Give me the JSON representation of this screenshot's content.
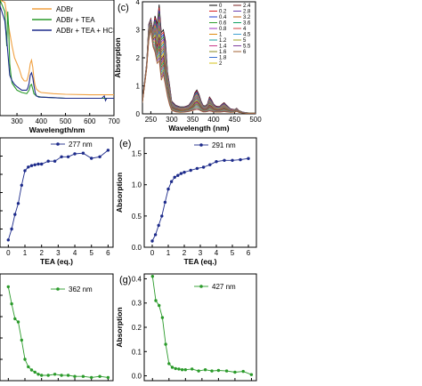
{
  "chart_data": [
    {
      "id": "b",
      "type": "line",
      "xlabel": "Wavelength/nm",
      "ylabel": "",
      "xlim": [
        230,
        700
      ],
      "ylim": [
        0,
        1.0
      ],
      "xticks": [
        300,
        400,
        500,
        600,
        700
      ],
      "xtick_labels": [
        "300",
        "400",
        "500",
        "600",
        "700"
      ],
      "legend": "top-right",
      "series": [
        {
          "name": "ADBr",
          "color": "#f0a040",
          "x": [
            230,
            250,
            260,
            270,
            280,
            290,
            300,
            310,
            320,
            330,
            340,
            345,
            350,
            355,
            360,
            365,
            370,
            375,
            380,
            390,
            400,
            450,
            500,
            600,
            700
          ],
          "y": [
            1.0,
            0.98,
            0.85,
            0.72,
            0.6,
            0.5,
            0.45,
            0.4,
            0.33,
            0.3,
            0.3,
            0.33,
            0.38,
            0.45,
            0.48,
            0.42,
            0.32,
            0.26,
            0.23,
            0.21,
            0.2,
            0.19,
            0.185,
            0.18,
            0.18
          ]
        },
        {
          "name": "ADBr + TEA",
          "color": "#2a9a2a",
          "x": [
            230,
            250,
            258,
            262,
            266,
            270,
            275,
            280,
            290,
            300,
            320,
            340,
            350,
            355,
            360,
            365,
            370,
            380,
            400,
            450,
            500,
            600,
            700
          ],
          "y": [
            1.0,
            0.9,
            0.6,
            0.9,
            0.75,
            0.45,
            0.35,
            0.28,
            0.25,
            0.22,
            0.2,
            0.19,
            0.22,
            0.26,
            0.27,
            0.23,
            0.19,
            0.17,
            0.16,
            0.155,
            0.15,
            0.15,
            0.15
          ]
        },
        {
          "name": "ADBr + TEA + HCl",
          "color": "#1c2a8a",
          "x": [
            230,
            250,
            260,
            270,
            280,
            290,
            300,
            320,
            340,
            345,
            350,
            355,
            360,
            365,
            370,
            375,
            380,
            390,
            400,
            450,
            500,
            600,
            650,
            660,
            665,
            670,
            700
          ],
          "y": [
            0.95,
            0.82,
            0.6,
            0.35,
            0.3,
            0.27,
            0.25,
            0.22,
            0.22,
            0.24,
            0.28,
            0.35,
            0.37,
            0.33,
            0.26,
            0.2,
            0.17,
            0.16,
            0.16,
            0.155,
            0.15,
            0.15,
            0.15,
            0.17,
            0.13,
            0.15,
            0.15
          ]
        }
      ]
    },
    {
      "id": "c",
      "type": "line",
      "panel_label": "(c)",
      "xlabel": "Wavelength (nm)",
      "ylabel": "Absorption",
      "xlim": [
        230,
        500
      ],
      "ylim": [
        0,
        4.0
      ],
      "xticks": [
        250,
        300,
        350,
        400,
        450,
        500
      ],
      "xtick_labels": [
        "250",
        "300",
        "350",
        "400",
        "450",
        "500"
      ],
      "yticks": [
        0,
        1,
        2,
        3,
        4
      ],
      "ytick_labels": [
        "0",
        "1",
        "2",
        "3",
        "4"
      ],
      "legend": "top-right",
      "legend_labels": [
        "0",
        "0.2",
        "0.4",
        "0.6",
        "0.8",
        "1",
        "1.2",
        "1.4",
        "1.6",
        "1.8",
        "2",
        "2.4",
        "2.8",
        "3.2",
        "3.6",
        "4",
        "4.5",
        "5",
        "5.5",
        "6"
      ],
      "legend_colors": [
        "#000000",
        "#d62020",
        "#1f3fd0",
        "#2e9e2e",
        "#9b30c0",
        "#e08a10",
        "#1aa0a0",
        "#c83a8a",
        "#8a8a1e",
        "#3a6fd0",
        "#d4c21a",
        "#7a1f1f",
        "#6a3fb0",
        "#c06010",
        "#10a060",
        "#d03f3f",
        "#3fa0d0",
        "#a0a020",
        "#803fa0",
        "#a06030"
      ],
      "spectra": {
        "x": [
          230,
          240,
          245,
          250,
          255,
          260,
          265,
          270,
          275,
          280,
          285,
          290,
          295,
          300,
          310,
          320,
          330,
          340,
          350,
          355,
          360,
          365,
          370,
          375,
          380,
          385,
          390,
          395,
          400,
          405,
          410,
          415,
          420,
          425,
          430,
          440,
          450,
          455,
          460,
          470,
          480,
          490,
          500
        ],
        "y_first": [
          0.5,
          1.8,
          3.2,
          3.4,
          3.0,
          3.5,
          3.2,
          3.9,
          2.9,
          3.0,
          2.6,
          1.5,
          1.0,
          0.45,
          0.3,
          0.25,
          0.25,
          0.3,
          0.5,
          0.75,
          0.85,
          0.7,
          0.45,
          0.3,
          0.28,
          0.35,
          0.6,
          0.5,
          0.35,
          0.28,
          0.26,
          0.27,
          0.35,
          0.4,
          0.32,
          0.18,
          0.15,
          0.2,
          0.12,
          0.06,
          0.04,
          0.03,
          0.02
        ],
        "y_last": [
          0.4,
          1.6,
          2.6,
          3.0,
          2.4,
          2.2,
          1.8,
          1.9,
          1.2,
          1.4,
          1.0,
          0.6,
          0.3,
          0.12,
          0.07,
          0.05,
          0.06,
          0.08,
          0.12,
          0.14,
          0.16,
          0.14,
          0.1,
          0.07,
          0.07,
          0.08,
          0.1,
          0.09,
          0.07,
          0.06,
          0.06,
          0.06,
          0.07,
          0.08,
          0.07,
          0.05,
          0.06,
          0.09,
          0.05,
          0.03,
          0.02,
          0.02,
          0.02
        ]
      }
    },
    {
      "id": "d",
      "type": "line",
      "xlabel": "TEA (eq.)",
      "ylabel": "",
      "xlim": [
        -0.5,
        6.3
      ],
      "ylim": [
        0.0,
        1.5
      ],
      "xticks": [
        0,
        1,
        2,
        3,
        4,
        5,
        6
      ],
      "xtick_labels": [
        "0",
        "1",
        "2",
        "3",
        "4",
        "5",
        "6"
      ],
      "legend": "top-right",
      "series": [
        {
          "name": "277 nm",
          "color": "#1c2a8a",
          "x": [
            0,
            0.2,
            0.4,
            0.6,
            0.8,
            1,
            1.2,
            1.4,
            1.6,
            1.8,
            2,
            2.4,
            2.8,
            3.2,
            3.6,
            4,
            4.5,
            5,
            5.5,
            6
          ],
          "y": [
            0.1,
            0.25,
            0.45,
            0.6,
            0.85,
            1.05,
            1.1,
            1.12,
            1.13,
            1.14,
            1.14,
            1.18,
            1.18,
            1.24,
            1.24,
            1.28,
            1.29,
            1.22,
            1.24,
            1.33
          ]
        }
      ]
    },
    {
      "id": "e",
      "type": "line",
      "panel_label": "(e)",
      "xlabel": "TEA (eq.)",
      "ylabel": "Absorption",
      "xlim": [
        -0.5,
        6.5
      ],
      "ylim": [
        0.0,
        1.75
      ],
      "xticks": [
        0,
        1,
        2,
        3,
        4,
        5,
        6
      ],
      "xtick_labels": [
        "0",
        "1",
        "2",
        "3",
        "4",
        "5",
        "6"
      ],
      "yticks": [
        0.0,
        0.5,
        1.0,
        1.5
      ],
      "ytick_labels": [
        "0.0",
        "0.5",
        "1.0",
        "1.5"
      ],
      "legend": "top-right",
      "series": [
        {
          "name": "291 nm",
          "color": "#1c2a8a",
          "x": [
            0,
            0.2,
            0.4,
            0.6,
            0.8,
            1,
            1.2,
            1.4,
            1.6,
            1.8,
            2,
            2.4,
            2.8,
            3.2,
            3.6,
            4,
            4.5,
            5,
            5.5,
            6
          ],
          "y": [
            0.1,
            0.2,
            0.35,
            0.5,
            0.72,
            0.93,
            1.05,
            1.12,
            1.15,
            1.18,
            1.2,
            1.23,
            1.26,
            1.28,
            1.32,
            1.37,
            1.39,
            1.39,
            1.4,
            1.42
          ]
        }
      ]
    },
    {
      "id": "f",
      "type": "line",
      "xlabel": "",
      "ylabel": "",
      "xlim": [
        -0.5,
        6.3
      ],
      "ylim": [
        0.0,
        1.0
      ],
      "legend": "top-right",
      "series": [
        {
          "name": "362 nm",
          "color": "#2a9a2a",
          "x": [
            0,
            0.2,
            0.4,
            0.6,
            0.8,
            1,
            1.2,
            1.4,
            1.6,
            1.8,
            2,
            2.4,
            2.8,
            3.2,
            3.6,
            4,
            4.5,
            5,
            5.5,
            6
          ],
          "y": [
            0.88,
            0.72,
            0.58,
            0.55,
            0.38,
            0.2,
            0.13,
            0.1,
            0.08,
            0.06,
            0.05,
            0.05,
            0.06,
            0.05,
            0.05,
            0.04,
            0.04,
            0.03,
            0.04,
            0.03
          ]
        }
      ]
    },
    {
      "id": "g",
      "type": "line",
      "panel_label": "(g)",
      "xlabel": "",
      "ylabel": "Absorption",
      "xlim": [
        -0.5,
        6.3
      ],
      "ylim": [
        -0.02,
        0.42
      ],
      "yticks": [
        0.0,
        0.1,
        0.2,
        0.3,
        0.4
      ],
      "ytick_labels": [
        "0.0",
        "0.1",
        "0.2",
        "0.3",
        "0.4"
      ],
      "legend": "top-right",
      "series": [
        {
          "name": "427 nm",
          "color": "#2a9a2a",
          "x": [
            0,
            0.2,
            0.4,
            0.6,
            0.8,
            1,
            1.2,
            1.4,
            1.6,
            1.8,
            2,
            2.4,
            2.8,
            3.2,
            3.6,
            4,
            4.5,
            5,
            5.5,
            6
          ],
          "y": [
            0.41,
            0.31,
            0.29,
            0.24,
            0.13,
            0.05,
            0.035,
            0.03,
            0.028,
            0.025,
            0.025,
            0.028,
            0.02,
            0.025,
            0.02,
            0.022,
            0.02,
            0.015,
            0.018,
            0.005
          ]
        }
      ]
    }
  ]
}
